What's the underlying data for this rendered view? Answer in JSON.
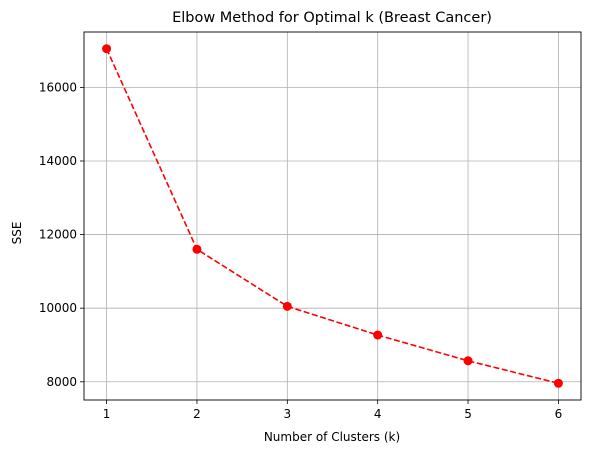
{
  "chart_data": {
    "type": "line",
    "title": "Elbow Method for Optimal k (Breast Cancer)",
    "xlabel": "Number of Clusters (k)",
    "ylabel": "SSE",
    "x": [
      1,
      2,
      3,
      4,
      5,
      6
    ],
    "series": [
      {
        "values": [
          17050,
          11600,
          10050,
          9270,
          8570,
          7960
        ],
        "color": "#ff0000",
        "line_style": "dashed",
        "marker": "circle"
      }
    ],
    "xticks": [
      1,
      2,
      3,
      4,
      5,
      6
    ],
    "yticks": [
      8000,
      10000,
      12000,
      14000,
      16000
    ],
    "xlim": [
      0.75,
      6.25
    ],
    "ylim": [
      7505,
      17505
    ],
    "grid": true
  }
}
